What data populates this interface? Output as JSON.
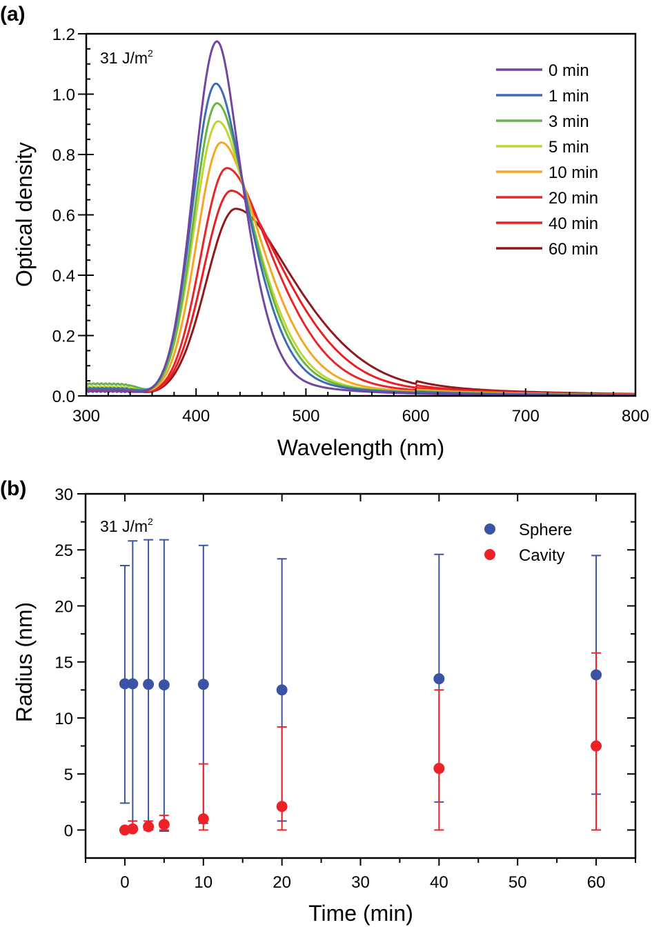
{
  "chart_data": [
    {
      "panel_label": "(a)",
      "type": "line",
      "title": "",
      "annotation": {
        "text": "31 J/m",
        "sup": "2"
      },
      "xlabel": "Wavelength (nm)",
      "ylabel": "Optical density",
      "xlim": [
        300,
        800
      ],
      "ylim": [
        0.0,
        1.2
      ],
      "xticks": [
        300,
        400,
        500,
        600,
        700,
        800
      ],
      "xtick_labels": [
        "300",
        "400",
        "500",
        "600",
        "700",
        "800"
      ],
      "yticks": [
        0.0,
        0.2,
        0.4,
        0.6,
        0.8,
        1.0,
        1.2
      ],
      "ytick_labels": [
        "0.0",
        "0.2",
        "0.4",
        "0.6",
        "0.8",
        "1.0",
        "1.2"
      ],
      "grid": false,
      "legend_position": "top-right",
      "series": [
        {
          "name": "0 min",
          "color": "#7146a1",
          "baseline": 0.015,
          "peak_x": 419,
          "peak_y": 1.175,
          "left_width": 30,
          "right_width": 52,
          "tail": 0.0
        },
        {
          "name": "1 min",
          "color": "#3e6cb5",
          "baseline": 0.025,
          "peak_x": 418,
          "peak_y": 1.035,
          "left_width": 30,
          "right_width": 65,
          "tail": 0.004
        },
        {
          "name": "3 min",
          "color": "#66b545",
          "baseline": 0.04,
          "peak_x": 419,
          "peak_y": 0.97,
          "left_width": 30,
          "right_width": 70,
          "tail": 0.006
        },
        {
          "name": "5 min",
          "color": "#bdd634",
          "baseline": 0.03,
          "peak_x": 420,
          "peak_y": 0.91,
          "left_width": 31,
          "right_width": 74,
          "tail": 0.007
        },
        {
          "name": "10 min",
          "color": "#f6a623",
          "baseline": 0.028,
          "peak_x": 423,
          "peak_y": 0.84,
          "left_width": 32,
          "right_width": 82,
          "tail": 0.009
        },
        {
          "name": "20 min",
          "color": "#e8262a",
          "baseline": 0.025,
          "peak_x": 428,
          "peak_y": 0.755,
          "left_width": 34,
          "right_width": 94,
          "tail": 0.011
        },
        {
          "name": "40 min",
          "color": "#ea1f24",
          "baseline": 0.022,
          "peak_x": 432,
          "peak_y": 0.68,
          "left_width": 36,
          "right_width": 108,
          "tail": 0.012
        },
        {
          "name": "60 min",
          "color": "#8e1a1e",
          "baseline": 0.02,
          "peak_x": 436,
          "peak_y": 0.62,
          "left_width": 38,
          "right_width": 122,
          "tail": 0.014
        }
      ]
    },
    {
      "panel_label": "(b)",
      "type": "scatter",
      "title": "",
      "annotation": {
        "text": "31 J/m",
        "sup": "2"
      },
      "xlabel": "Time (min)",
      "ylabel": "Radius (nm)",
      "xlim": [
        -5,
        65
      ],
      "ylim": [
        -2.5,
        30
      ],
      "xticks": [
        0,
        10,
        20,
        30,
        40,
        50,
        60
      ],
      "xtick_labels": [
        "0",
        "10",
        "20",
        "30",
        "40",
        "50",
        "60"
      ],
      "yticks": [
        0,
        5,
        10,
        15,
        20,
        25,
        30
      ],
      "ytick_labels": [
        "0",
        "5",
        "10",
        "15",
        "20",
        "25",
        "30"
      ],
      "grid": false,
      "legend_position": "top-right",
      "series": [
        {
          "name": "Sphere",
          "color": "#3a53a4",
          "x": [
            0,
            1,
            3,
            5,
            10,
            20,
            40,
            60
          ],
          "y": [
            13.05,
            13.05,
            13.0,
            12.95,
            13.0,
            12.5,
            13.5,
            13.85
          ],
          "err_hi": [
            23.6,
            25.8,
            25.9,
            25.9,
            25.4,
            24.2,
            24.6,
            24.5
          ],
          "err_lo": [
            2.4,
            0.3,
            0.1,
            -0.1,
            0.6,
            0.8,
            2.5,
            3.2
          ]
        },
        {
          "name": "Cavity",
          "color": "#ec2227",
          "x": [
            0,
            1,
            3,
            5,
            10,
            20,
            40,
            60
          ],
          "y": [
            0.0,
            0.1,
            0.3,
            0.5,
            1.0,
            2.1,
            5.5,
            7.5
          ],
          "err_hi": [
            0.0,
            0.8,
            0.8,
            1.3,
            5.9,
            9.2,
            12.5,
            15.8
          ],
          "err_lo": [
            0.0,
            0.0,
            0.0,
            0.0,
            0.0,
            0.0,
            0.0,
            0.0
          ]
        }
      ]
    }
  ]
}
